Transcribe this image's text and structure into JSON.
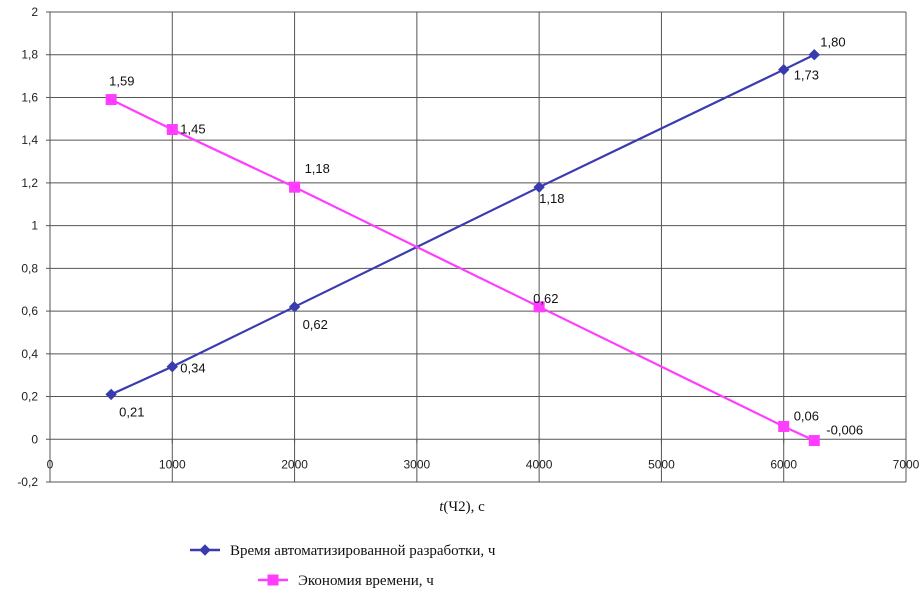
{
  "chart_data": {
    "type": "line",
    "title": "",
    "xlabel_italic": "t",
    "xlabel_rest": "(Ч2), с",
    "ylabel": "",
    "xlim": [
      0,
      7000
    ],
    "ylim": [
      -0.2,
      2
    ],
    "x_ticks": [
      0,
      1000,
      2000,
      3000,
      4000,
      5000,
      6000,
      7000
    ],
    "x_tick_labels": [
      "0",
      "1000",
      "2000",
      "3000",
      "4000",
      "5000",
      "6000",
      "7000"
    ],
    "y_ticks": [
      -0.2,
      0,
      0.2,
      0.4,
      0.6,
      0.8,
      1,
      1.2,
      1.4,
      1.6,
      1.8,
      2
    ],
    "y_tick_labels": [
      "-0,2",
      "0",
      "0,2",
      "0,4",
      "0,6",
      "0,8",
      "1",
      "1,2",
      "1,4",
      "1,6",
      "1,8",
      "2"
    ],
    "grid": true,
    "legend_position": "bottom",
    "series": [
      {
        "name": "Время автоматизированной разработки, ч",
        "color": "#3b3bb0",
        "marker": "diamond",
        "x": [
          500,
          1000,
          2000,
          4000,
          6000,
          6250
        ],
        "y": [
          0.21,
          0.34,
          0.62,
          1.18,
          1.73,
          1.8
        ],
        "labels": [
          "0,21",
          "0,34",
          "0,62",
          "1,18",
          "1,73",
          "1,80"
        ]
      },
      {
        "name": "Экономия времени, ч",
        "color": "#ff3cff",
        "marker": "square",
        "x": [
          500,
          1000,
          2000,
          4000,
          6000,
          6250
        ],
        "y": [
          1.59,
          1.45,
          1.18,
          0.62,
          0.06,
          -0.006
        ],
        "labels": [
          "1,59",
          "1,45",
          "1,18",
          "0,62",
          "0,06",
          "-0,006"
        ]
      }
    ]
  }
}
